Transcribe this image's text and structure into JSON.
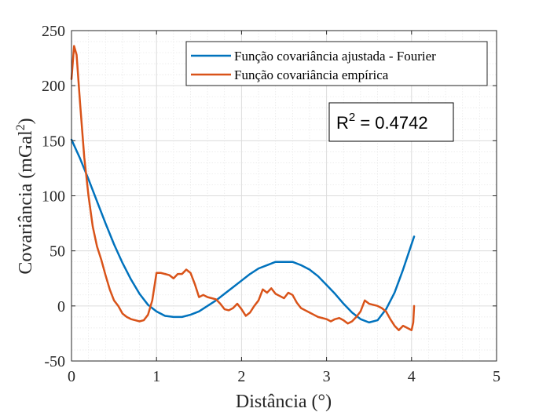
{
  "chart_data": {
    "type": "line",
    "title": "",
    "xlabel": "Distância (°)",
    "ylabel_main": "Covariância (mGal",
    "ylabel_sup": "2",
    "ylabel_tail": ")",
    "xlim": [
      0,
      5
    ],
    "ylim": [
      -50,
      250
    ],
    "xticks": [
      0,
      1,
      2,
      3,
      4,
      5
    ],
    "yticks": [
      -50,
      0,
      50,
      100,
      150,
      200,
      250
    ],
    "grid": true,
    "minor_grid": true,
    "legend_position": "top-right",
    "annotation": {
      "base": "R",
      "sup": "2",
      "rest": " = 0.4742"
    },
    "series": [
      {
        "name": "Função covariância ajustada - Fourier",
        "color": "#0072BD",
        "x": [
          0,
          0.1,
          0.2,
          0.3,
          0.4,
          0.5,
          0.6,
          0.7,
          0.8,
          0.9,
          1.0,
          1.1,
          1.2,
          1.3,
          1.4,
          1.5,
          1.6,
          1.7,
          1.8,
          1.9,
          2.0,
          2.1,
          2.2,
          2.3,
          2.4,
          2.5,
          2.6,
          2.7,
          2.8,
          2.9,
          3.0,
          3.1,
          3.2,
          3.3,
          3.4,
          3.5,
          3.6,
          3.7,
          3.8,
          3.9,
          4.03
        ],
        "y": [
          151,
          134,
          115,
          95,
          75,
          56,
          39,
          24,
          11,
          1,
          -5,
          -9,
          -10,
          -10,
          -8,
          -5,
          0,
          5,
          11,
          17,
          23,
          29,
          34,
          37,
          40,
          40,
          40,
          37,
          33,
          27,
          19,
          11,
          2,
          -6,
          -12,
          -15,
          -13,
          -3,
          12,
          33,
          63
        ]
      },
      {
        "name": "Função covariância empírica",
        "color": "#D95319",
        "x": [
          0,
          0.03,
          0.06,
          0.1,
          0.15,
          0.2,
          0.25,
          0.3,
          0.35,
          0.4,
          0.45,
          0.5,
          0.55,
          0.6,
          0.65,
          0.7,
          0.75,
          0.8,
          0.85,
          0.9,
          0.95,
          1.0,
          1.05,
          1.1,
          1.15,
          1.2,
          1.25,
          1.3,
          1.35,
          1.4,
          1.45,
          1.5,
          1.55,
          1.6,
          1.65,
          1.7,
          1.75,
          1.8,
          1.85,
          1.9,
          1.95,
          2.0,
          2.05,
          2.1,
          2.15,
          2.2,
          2.25,
          2.3,
          2.35,
          2.4,
          2.45,
          2.5,
          2.55,
          2.6,
          2.65,
          2.7,
          2.75,
          2.8,
          2.85,
          2.9,
          2.95,
          3.0,
          3.05,
          3.1,
          3.15,
          3.2,
          3.25,
          3.3,
          3.35,
          3.4,
          3.45,
          3.5,
          3.55,
          3.6,
          3.65,
          3.7,
          3.75,
          3.8,
          3.85,
          3.9,
          3.95,
          4.0,
          4.02,
          4.03
        ],
        "y": [
          206,
          236,
          228,
          185,
          135,
          100,
          72,
          54,
          42,
          28,
          15,
          5,
          0,
          -7,
          -10,
          -12,
          -13,
          -14,
          -13,
          -8,
          5,
          30,
          30,
          29,
          28,
          25,
          29,
          29,
          33,
          30,
          20,
          8,
          10,
          8,
          7,
          6,
          2,
          -3,
          -4,
          -2,
          2,
          -3,
          -9,
          -6,
          0,
          5,
          15,
          12,
          16,
          11,
          9,
          7,
          12,
          10,
          3,
          -2,
          -4,
          -6,
          -8,
          -10,
          -11,
          -12,
          -14,
          -12,
          -11,
          -13,
          -16,
          -14,
          -10,
          -5,
          5,
          2,
          1,
          0,
          -2,
          -5,
          -12,
          -18,
          -22,
          -18,
          -20,
          -22,
          -15,
          0
        ]
      }
    ]
  }
}
